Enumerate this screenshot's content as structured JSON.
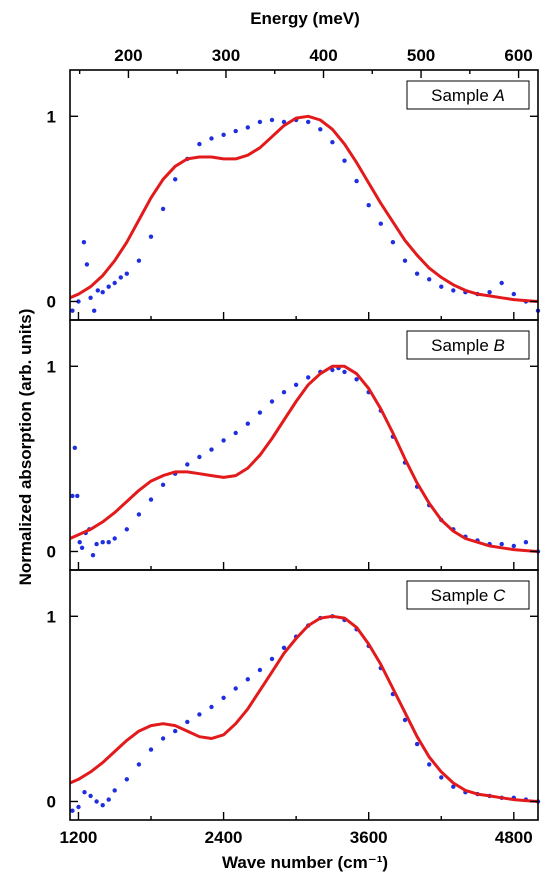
{
  "chart_data": {
    "type": "line",
    "top_axis": {
      "label": "Energy (meV)",
      "ticks": [
        200,
        300,
        400,
        500,
        600
      ]
    },
    "x_axis": {
      "label": "Wave number (cm⁻¹)",
      "ticks": [
        1200,
        2400,
        3600,
        4800
      ],
      "range": [
        1130,
        5000
      ]
    },
    "y_axis": {
      "label": "Normalized absorption (arb. units)",
      "ticks": [
        0,
        1
      ],
      "range": [
        -0.1,
        1.25
      ]
    },
    "panels": [
      {
        "legend": {
          "text": "Sample ",
          "italic": "A"
        },
        "series": [
          {
            "style": "points",
            "color": "#1f2fe0",
            "x": [
              1150,
              1200,
              1245,
              1270,
              1300,
              1330,
              1360,
              1400,
              1450,
              1500,
              1550,
              1600,
              1700,
              1800,
              1900,
              2000,
              2100,
              2200,
              2300,
              2400,
              2500,
              2600,
              2700,
              2800,
              2900,
              3000,
              3100,
              3200,
              3300,
              3400,
              3500,
              3600,
              3700,
              3800,
              3900,
              4000,
              4100,
              4200,
              4300,
              4400,
              4500,
              4600,
              4700,
              4800,
              4900,
              5000
            ],
            "y": [
              -0.05,
              0.0,
              0.32,
              0.2,
              0.02,
              -0.05,
              0.06,
              0.05,
              0.08,
              0.1,
              0.13,
              0.15,
              0.22,
              0.35,
              0.5,
              0.66,
              0.77,
              0.85,
              0.88,
              0.9,
              0.92,
              0.94,
              0.97,
              0.98,
              0.97,
              0.98,
              0.97,
              0.93,
              0.86,
              0.76,
              0.65,
              0.52,
              0.42,
              0.32,
              0.22,
              0.15,
              0.12,
              0.08,
              0.06,
              0.05,
              0.04,
              0.05,
              0.1,
              0.04,
              0.0,
              -0.05
            ]
          },
          {
            "style": "line",
            "color": "#e31a1c",
            "x": [
              1130,
              1200,
              1300,
              1400,
              1500,
              1600,
              1700,
              1800,
              1900,
              2000,
              2100,
              2200,
              2300,
              2400,
              2500,
              2600,
              2700,
              2800,
              2900,
              3000,
              3100,
              3200,
              3300,
              3400,
              3500,
              3600,
              3700,
              3800,
              3900,
              4000,
              4100,
              4200,
              4300,
              4400,
              4500,
              4600,
              4700,
              4800,
              4900,
              5000
            ],
            "y": [
              0.02,
              0.04,
              0.08,
              0.14,
              0.22,
              0.32,
              0.44,
              0.56,
              0.66,
              0.73,
              0.77,
              0.78,
              0.78,
              0.77,
              0.77,
              0.79,
              0.83,
              0.89,
              0.95,
              0.99,
              1.0,
              0.98,
              0.93,
              0.85,
              0.75,
              0.64,
              0.53,
              0.43,
              0.33,
              0.25,
              0.18,
              0.13,
              0.09,
              0.06,
              0.04,
              0.03,
              0.02,
              0.01,
              0.005,
              0.0
            ]
          }
        ]
      },
      {
        "legend": {
          "text": "Sample ",
          "italic": "B"
        },
        "series": [
          {
            "style": "points",
            "color": "#1f2fe0",
            "x": [
              1150,
              1170,
              1190,
              1210,
              1230,
              1260,
              1290,
              1320,
              1350,
              1400,
              1450,
              1500,
              1600,
              1700,
              1800,
              1900,
              2000,
              2100,
              2200,
              2300,
              2400,
              2500,
              2600,
              2700,
              2800,
              2900,
              3000,
              3100,
              3200,
              3300,
              3350,
              3400,
              3500,
              3600,
              3700,
              3800,
              3900,
              4000,
              4100,
              4200,
              4300,
              4400,
              4500,
              4600,
              4700,
              4800,
              4900,
              5000
            ],
            "y": [
              0.3,
              0.56,
              0.3,
              0.05,
              0.02,
              0.1,
              0.12,
              -0.02,
              0.04,
              0.05,
              0.05,
              0.07,
              0.12,
              0.2,
              0.28,
              0.36,
              0.42,
              0.47,
              0.51,
              0.55,
              0.6,
              0.64,
              0.69,
              0.75,
              0.81,
              0.86,
              0.9,
              0.94,
              0.97,
              0.98,
              0.99,
              0.97,
              0.93,
              0.86,
              0.76,
              0.62,
              0.48,
              0.35,
              0.25,
              0.17,
              0.12,
              0.08,
              0.06,
              0.04,
              0.04,
              0.03,
              0.05,
              0.0
            ]
          },
          {
            "style": "line",
            "color": "#e31a1c",
            "x": [
              1130,
              1200,
              1300,
              1400,
              1500,
              1600,
              1700,
              1800,
              1900,
              2000,
              2100,
              2200,
              2300,
              2400,
              2500,
              2600,
              2700,
              2800,
              2900,
              3000,
              3100,
              3200,
              3300,
              3400,
              3500,
              3600,
              3700,
              3800,
              3900,
              4000,
              4100,
              4200,
              4300,
              4400,
              4500,
              4600,
              4700,
              4800,
              4900,
              5000
            ],
            "y": [
              0.07,
              0.09,
              0.12,
              0.16,
              0.21,
              0.27,
              0.33,
              0.38,
              0.41,
              0.43,
              0.43,
              0.42,
              0.41,
              0.4,
              0.41,
              0.45,
              0.52,
              0.61,
              0.71,
              0.81,
              0.9,
              0.96,
              1.0,
              1.0,
              0.96,
              0.88,
              0.77,
              0.64,
              0.5,
              0.37,
              0.26,
              0.17,
              0.11,
              0.07,
              0.05,
              0.03,
              0.02,
              0.01,
              0.005,
              0.0
            ]
          }
        ]
      },
      {
        "legend": {
          "text": "Sample ",
          "italic": "C"
        },
        "series": [
          {
            "style": "points",
            "color": "#1f2fe0",
            "x": [
              1150,
              1200,
              1250,
              1300,
              1350,
              1400,
              1450,
              1500,
              1600,
              1700,
              1800,
              1900,
              2000,
              2100,
              2200,
              2300,
              2400,
              2500,
              2600,
              2700,
              2800,
              2900,
              3000,
              3100,
              3200,
              3300,
              3400,
              3500,
              3600,
              3700,
              3800,
              3900,
              4000,
              4100,
              4200,
              4300,
              4400,
              4500,
              4600,
              4700,
              4800,
              4900,
              5000
            ],
            "y": [
              -0.05,
              -0.03,
              0.05,
              0.03,
              0.0,
              -0.02,
              0.01,
              0.06,
              0.12,
              0.2,
              0.28,
              0.34,
              0.38,
              0.43,
              0.47,
              0.51,
              0.56,
              0.61,
              0.66,
              0.71,
              0.77,
              0.83,
              0.89,
              0.95,
              0.99,
              1.0,
              0.98,
              0.93,
              0.84,
              0.72,
              0.58,
              0.44,
              0.31,
              0.2,
              0.13,
              0.08,
              0.05,
              0.04,
              0.03,
              0.02,
              0.02,
              0.01,
              0.0
            ]
          },
          {
            "style": "line",
            "color": "#e31a1c",
            "x": [
              1130,
              1200,
              1300,
              1400,
              1500,
              1600,
              1700,
              1800,
              1900,
              2000,
              2100,
              2200,
              2300,
              2400,
              2500,
              2600,
              2700,
              2800,
              2900,
              3000,
              3100,
              3200,
              3300,
              3400,
              3500,
              3600,
              3700,
              3800,
              3900,
              4000,
              4100,
              4200,
              4300,
              4400,
              4500,
              4600,
              4700,
              4800,
              4900,
              5000
            ],
            "y": [
              0.1,
              0.12,
              0.16,
              0.21,
              0.27,
              0.33,
              0.38,
              0.41,
              0.42,
              0.41,
              0.38,
              0.35,
              0.34,
              0.36,
              0.42,
              0.5,
              0.6,
              0.7,
              0.8,
              0.88,
              0.95,
              0.99,
              1.0,
              0.99,
              0.94,
              0.85,
              0.74,
              0.61,
              0.48,
              0.35,
              0.24,
              0.16,
              0.1,
              0.06,
              0.04,
              0.03,
              0.02,
              0.01,
              0.005,
              0.0
            ]
          }
        ]
      }
    ]
  }
}
